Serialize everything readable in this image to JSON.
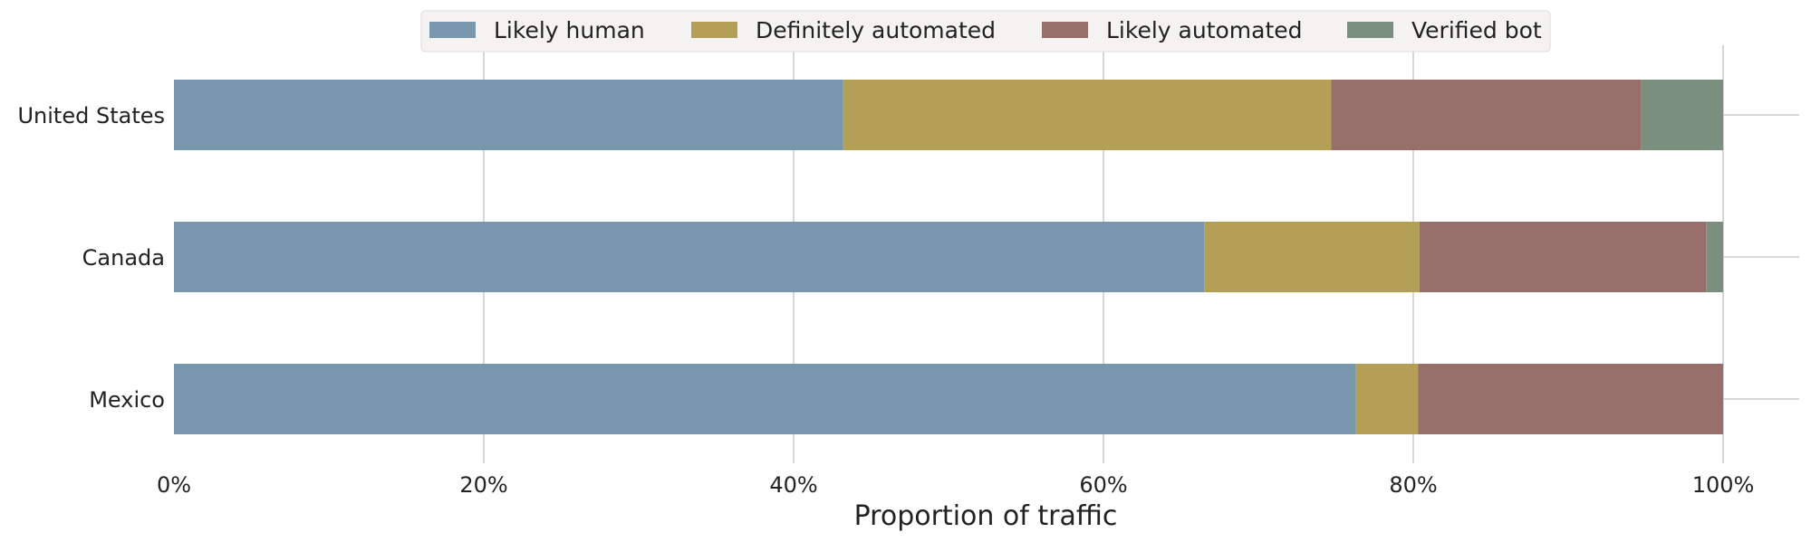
{
  "chart_data": {
    "type": "bar",
    "orientation": "horizontal",
    "stacked": true,
    "categories": [
      "United States",
      "Canada",
      "Mexico"
    ],
    "series": [
      {
        "name": "Likely human",
        "color": "#7897ad",
        "values": [
          43.2,
          66.5,
          76.3
        ]
      },
      {
        "name": "Definitely automated",
        "color": "#b3a056",
        "values": [
          31.5,
          13.9,
          4.0
        ]
      },
      {
        "name": "Likely automated",
        "color": "#966f6b",
        "values": [
          20.0,
          18.5,
          19.7
        ]
      },
      {
        "name": "Verified bot",
        "color": "#7a8f7d",
        "values": [
          5.3,
          1.1,
          0.0
        ]
      }
    ],
    "xlabel": "Proportion of traffic",
    "ylabel": "",
    "xlim": [
      0,
      100
    ],
    "x_ticks": [
      "0%",
      "20%",
      "40%",
      "60%",
      "80%",
      "100%"
    ],
    "x_tick_values": [
      0,
      20,
      40,
      60,
      80,
      100
    ],
    "grid": true,
    "legend_position": "top-center"
  }
}
